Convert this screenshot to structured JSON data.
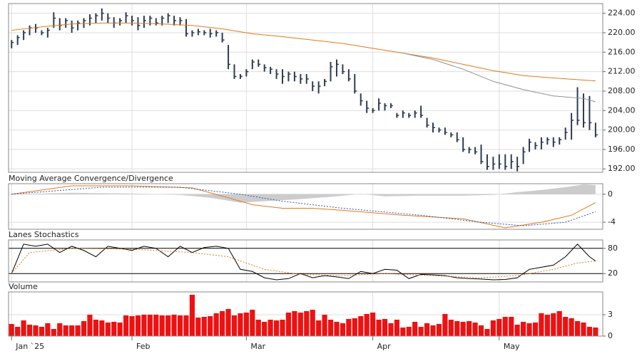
{
  "chart_data": [
    {
      "type": "ohlc",
      "color": "#2e3b52",
      "xlim": [
        -0.5,
        98.2
      ],
      "ylim": [
        191.3,
        226
      ],
      "grid": true,
      "yticks": [
        {
          "value": 224,
          "label": "224.00"
        },
        {
          "value": 220,
          "label": "220.00"
        },
        {
          "value": 216,
          "label": "216.00"
        },
        {
          "value": 212,
          "label": "212.00"
        },
        {
          "value": 208,
          "label": "208.00"
        },
        {
          "value": 204,
          "label": "204.00"
        },
        {
          "value": 200,
          "label": "200.00"
        },
        {
          "value": 196,
          "label": "196.00"
        },
        {
          "value": 192,
          "label": "192.00"
        }
      ],
      "high": [
        218.5,
        219.5,
        220.5,
        221.5,
        221.8,
        220.5,
        221,
        224.2,
        223,
        223,
        222.5,
        222.5,
        223,
        223.8,
        224,
        225,
        224,
        223.2,
        223,
        224.2,
        223.5,
        223.2,
        223.5,
        223.5,
        223,
        223.5,
        224,
        223.5,
        223.2,
        222.8,
        220.5,
        220.8,
        220.5,
        220.8,
        220.5,
        220,
        217.5,
        213.5,
        211.5,
        212.5,
        214.5,
        214.5,
        213.5,
        213,
        212.5,
        212.5,
        212,
        212,
        211.5,
        211.5,
        210,
        210,
        210.5,
        214,
        214.5,
        213.5,
        212.5,
        211.5,
        207.5,
        206,
        204.5,
        206.5,
        205.5,
        205.5,
        203.5,
        204,
        203.5,
        204,
        205,
        202.5,
        201.5,
        200.5,
        200.5,
        199.5,
        199.5,
        198.5,
        196.5,
        196.5,
        197,
        195,
        194.5,
        195,
        195,
        195,
        194.5,
        196.5,
        198.2,
        197.5,
        198.5,
        198.5,
        198.5,
        198.5,
        200.5,
        203.5,
        208.8,
        207.5,
        207,
        201.5
      ],
      "low": [
        216.8,
        217.5,
        218.5,
        219.5,
        220,
        219.5,
        219,
        221,
        220.5,
        221,
        220,
        220.5,
        221,
        221.5,
        222,
        222.5,
        222,
        221,
        221.5,
        222,
        221.5,
        220.5,
        221,
        221.5,
        221.5,
        221.5,
        222,
        221.5,
        221.5,
        219.2,
        219.2,
        219.5,
        219.5,
        219,
        219.2,
        218,
        212.5,
        210.5,
        210.5,
        211,
        212.5,
        213,
        212,
        211.5,
        210.5,
        209.5,
        210,
        210,
        209.5,
        209.5,
        208,
        207.5,
        209,
        210,
        211,
        211.5,
        210,
        207.5,
        205,
        203.5,
        203.5,
        204,
        204,
        204.5,
        202.5,
        202.5,
        202.5,
        202.5,
        202.5,
        200.5,
        199.5,
        199.5,
        199,
        198.5,
        197.5,
        195.5,
        195.2,
        195,
        193,
        191.8,
        191.8,
        192,
        191.8,
        192,
        191.5,
        193,
        195.5,
        196,
        196,
        197,
        196.5,
        197,
        198,
        198,
        201,
        200.5,
        200,
        198.5
      ],
      "close": [
        218,
        219,
        220,
        221,
        221,
        220,
        220.5,
        223,
        221.5,
        222.5,
        221,
        222,
        222.5,
        223,
        223.5,
        224,
        223,
        222,
        222.5,
        223.5,
        222.5,
        221.5,
        222.5,
        223,
        222,
        223,
        223.5,
        222.5,
        222.5,
        219.8,
        220,
        220.2,
        220,
        219.8,
        220,
        218.5,
        213.5,
        211,
        211,
        212,
        214,
        213.5,
        212.8,
        212.5,
        211.5,
        211,
        211.5,
        211,
        210.5,
        210.5,
        209,
        209,
        210,
        213,
        213.5,
        212,
        210.5,
        208,
        206,
        204.5,
        204,
        205.5,
        205,
        205,
        203,
        203.5,
        203,
        203.5,
        203,
        201,
        200.5,
        200,
        199.5,
        199,
        198,
        196,
        196,
        195.5,
        193.5,
        192.5,
        193,
        193,
        192.5,
        193.5,
        192.5,
        195.5,
        197.5,
        196.8,
        197.5,
        198,
        197.5,
        198,
        199.5,
        202,
        202,
        201.5,
        201.5,
        199
      ],
      "lines": [
        {
          "color": "#e07a1c",
          "x": [
            0,
            5,
            10,
            15,
            20,
            25,
            30,
            35,
            40,
            45,
            50,
            55,
            60,
            65,
            70,
            75,
            80,
            85,
            90,
            97
          ],
          "values": [
            220.5,
            221.2,
            221.8,
            222,
            222,
            221.8,
            221.5,
            220.8,
            219.8,
            219.2,
            218.5,
            217.8,
            216.8,
            215.8,
            214.8,
            213.5,
            212.2,
            211.2,
            210.7,
            210.1
          ]
        },
        {
          "color": "#909090",
          "x": [
            65,
            70,
            75,
            80,
            85,
            90,
            95,
            97
          ],
          "values": [
            215.8,
            214.5,
            212.5,
            210,
            208.3,
            207,
            206.5,
            205.8
          ]
        }
      ]
    },
    {
      "type": "macd",
      "title": "Moving Average Convergence/Divergence",
      "ylim": [
        -5,
        1.5
      ],
      "yticks": [
        0,
        -4
      ],
      "histogram": {
        "color": "#cccccc",
        "x": [
          0,
          10,
          20,
          28,
          33,
          38,
          42,
          48,
          54,
          58,
          62,
          68,
          75,
          80,
          84,
          88,
          92,
          95,
          97
        ],
        "values": [
          0,
          0.2,
          0.1,
          -0.1,
          -0.5,
          -1.2,
          -1,
          -0.7,
          -0.3,
          0.05,
          -0.3,
          -0.2,
          -0.2,
          -0.1,
          0.3,
          0.6,
          1,
          1.4,
          1.3
        ]
      },
      "series": [
        {
          "color": "#e07a1c",
          "dash": false,
          "x": [
            0,
            10,
            20,
            30,
            36,
            40,
            45,
            50,
            55,
            65,
            75,
            82,
            88,
            93,
            97
          ],
          "values": [
            0,
            1.2,
            1.2,
            0.9,
            -0.5,
            -1.5,
            -2,
            -2,
            -2.3,
            -3,
            -3.5,
            -4.8,
            -4,
            -3,
            -1.2
          ]
        },
        {
          "color": "#3355aa",
          "dash": true,
          "x": [
            0,
            15,
            28,
            38,
            45,
            55,
            68,
            78,
            85,
            92,
            97
          ],
          "values": [
            0,
            1,
            1,
            0,
            -1,
            -2,
            -3,
            -4,
            -4.5,
            -4,
            -2.5
          ]
        }
      ]
    },
    {
      "type": "line",
      "title": "Lanes Stochastics",
      "ylim": [
        0,
        100
      ],
      "yticks": [
        80,
        20
      ],
      "grid_color": "#000000",
      "series": [
        {
          "color": "#000000",
          "dash": false,
          "x": [
            0,
            2,
            4,
            6,
            8,
            10,
            12,
            14,
            16,
            18,
            20,
            22,
            24,
            26,
            28,
            30,
            32,
            34,
            36,
            38,
            40,
            42,
            44,
            46,
            48,
            50,
            52,
            54,
            56,
            58,
            60,
            62,
            64,
            66,
            68,
            70,
            72,
            74,
            76,
            78,
            80,
            82,
            84,
            86,
            88,
            90,
            92,
            94,
            96,
            97
          ],
          "values": [
            20,
            90,
            85,
            90,
            70,
            85,
            75,
            60,
            85,
            80,
            75,
            85,
            80,
            60,
            85,
            70,
            82,
            85,
            80,
            30,
            25,
            10,
            5,
            8,
            20,
            10,
            15,
            12,
            8,
            25,
            20,
            30,
            28,
            8,
            18,
            17,
            15,
            10,
            8,
            7,
            5,
            6,
            10,
            30,
            35,
            40,
            60,
            90,
            60,
            50
          ]
        },
        {
          "color": "#e07a1c",
          "dash": true,
          "x": [
            0,
            3,
            10,
            20,
            30,
            36,
            42,
            48,
            55,
            62,
            70,
            78,
            84,
            90,
            94,
            97
          ],
          "values": [
            20,
            70,
            80,
            78,
            70,
            60,
            30,
            18,
            15,
            20,
            15,
            10,
            15,
            30,
            45,
            50
          ]
        }
      ]
    },
    {
      "type": "bar",
      "title": "Volume",
      "color": "#ee1111",
      "ylim": [
        0,
        6.2
      ],
      "yticks": [
        3,
        0
      ],
      "values": [
        1.7,
        1.3,
        2.2,
        1.6,
        1.5,
        1.3,
        1.8,
        1,
        1.8,
        1.5,
        1.5,
        1.5,
        2.1,
        3,
        2.3,
        2.2,
        1.9,
        2,
        1.9,
        2.9,
        2.8,
        2.9,
        3,
        3,
        3,
        2.9,
        2.9,
        3,
        2.9,
        2.9,
        5.8,
        2.6,
        2.7,
        2.8,
        3.2,
        3.5,
        3.8,
        2.9,
        3.2,
        3.3,
        3.7,
        2.3,
        2,
        2.3,
        2.2,
        2.3,
        3.3,
        3.5,
        3.3,
        3.5,
        3.7,
        2.2,
        3,
        2.3,
        2,
        1.8,
        2.4,
        2.5,
        2.8,
        3.1,
        3.3,
        2.3,
        2.4,
        1.8,
        2.3,
        1.2,
        1.3,
        2,
        1.3,
        1.8,
        1.5,
        1.7,
        3.1,
        2.3,
        2.1,
        2,
        2.1,
        1.9,
        1.5,
        1,
        2.2,
        2.4,
        2.7,
        2.7,
        1.6,
        2,
        1.8,
        1.9,
        3.2,
        3,
        3.2,
        3.5,
        2.7,
        2.5,
        2.1,
        1.9,
        1.3,
        1.2
      ],
      "xticks": [
        {
          "value": 0,
          "label": "Jan `25"
        },
        {
          "value": 20,
          "label": "Feb"
        },
        {
          "value": 39,
          "label": "Mar"
        },
        {
          "value": 60,
          "label": "Apr"
        },
        {
          "value": 81,
          "label": "May"
        }
      ]
    }
  ]
}
